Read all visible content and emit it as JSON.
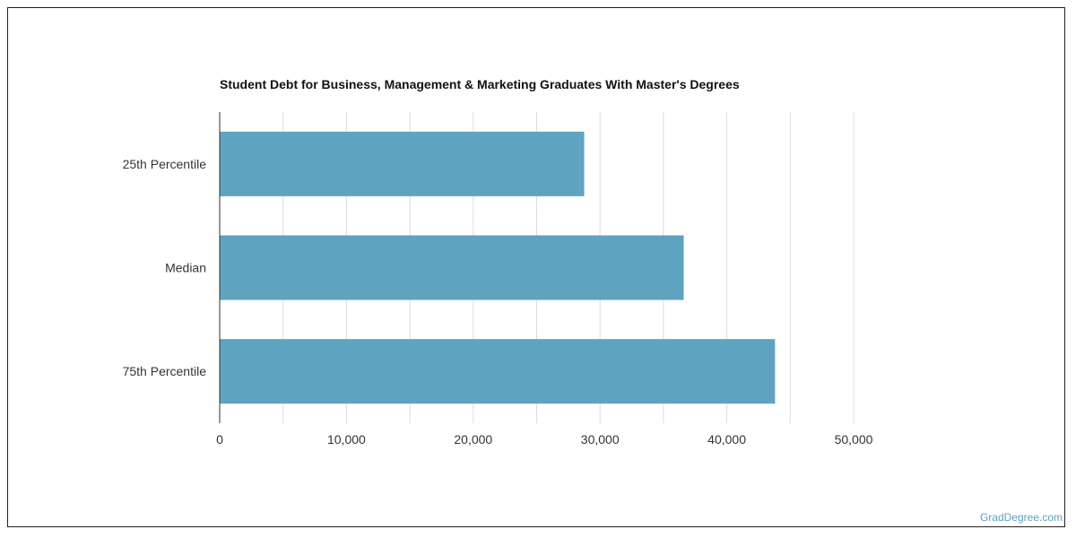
{
  "chart_data": {
    "type": "bar",
    "orientation": "horizontal",
    "title": "Student Debt for Business, Management & Marketing Graduates With Master's Degrees",
    "categories": [
      "25th Percentile",
      "Median",
      "75th Percentile"
    ],
    "values": [
      28750,
      36600,
      43800
    ],
    "xlim": [
      0,
      50000
    ],
    "x_ticks": [
      0,
      10000,
      20000,
      30000,
      40000,
      50000
    ],
    "x_tick_labels": [
      "0",
      "10,000",
      "20,000",
      "30,000",
      "40,000",
      "50,000"
    ],
    "grid": true,
    "bar_color": "#5ea3bf",
    "legend": "none"
  },
  "watermark": "GradDegree.com"
}
